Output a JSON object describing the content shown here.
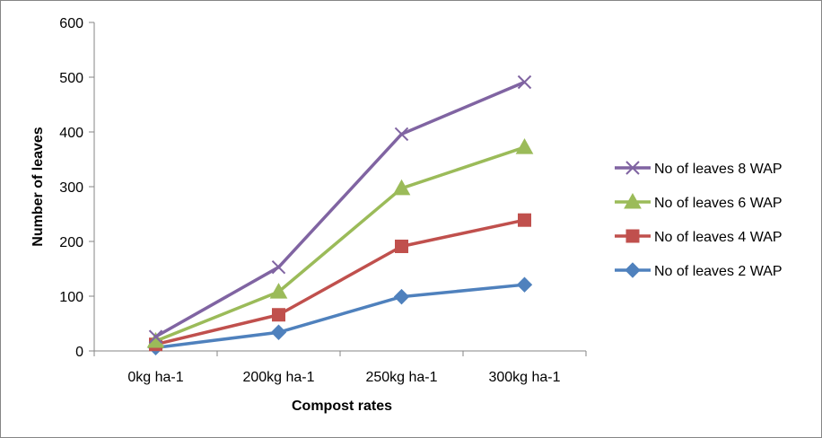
{
  "chart_data": {
    "type": "line",
    "title": "",
    "xlabel": "Compost rates",
    "ylabel": "Number of leaves",
    "categories": [
      "0kg ha-1",
      "200kg ha-1",
      "250kg ha-1",
      "300kg ha-1"
    ],
    "ylim": [
      0,
      600
    ],
    "yticks": [
      "0",
      "100",
      "200",
      "300",
      "400",
      "500",
      "600"
    ],
    "grid": false,
    "legend_position": "right",
    "series": [
      {
        "name": "No of leaves 8 WAP",
        "values": [
          26,
          153,
          396,
          491
        ],
        "color": "#8064A2",
        "marker": "x"
      },
      {
        "name": "No of leaves 6 WAP",
        "values": [
          18,
          108,
          297,
          372
        ],
        "color": "#9BBB59",
        "marker": "triangle"
      },
      {
        "name": "No of leaves 4 WAP",
        "values": [
          12,
          66,
          191,
          239
        ],
        "color": "#C0504D",
        "marker": "square"
      },
      {
        "name": "No of leaves 2 WAP",
        "values": [
          6,
          34,
          99,
          121
        ],
        "color": "#4F81BD",
        "marker": "diamond"
      }
    ]
  }
}
